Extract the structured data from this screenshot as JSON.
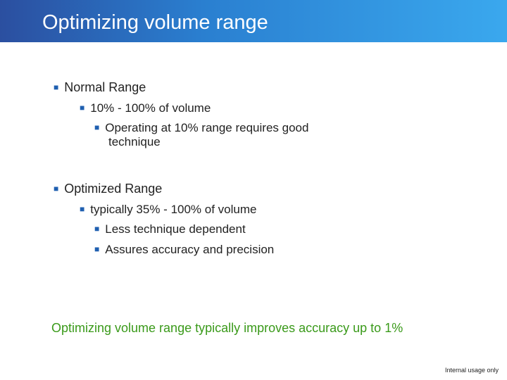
{
  "header": {
    "title": "Optimizing volume range"
  },
  "sections": [
    {
      "label": "Normal Range",
      "items": [
        {
          "label": "10% - 100% of volume",
          "items": [
            "Operating at 10% range requires good technique"
          ]
        }
      ]
    },
    {
      "label": "Optimized Range",
      "items": [
        {
          "label": "typically 35% - 100% of volume",
          "items": [
            "Less technique dependent",
            "Assures accuracy and precision"
          ]
        }
      ]
    }
  ],
  "conclusion": "Optimizing volume range typically improves accuracy up to 1%",
  "footer": "Internal usage only"
}
